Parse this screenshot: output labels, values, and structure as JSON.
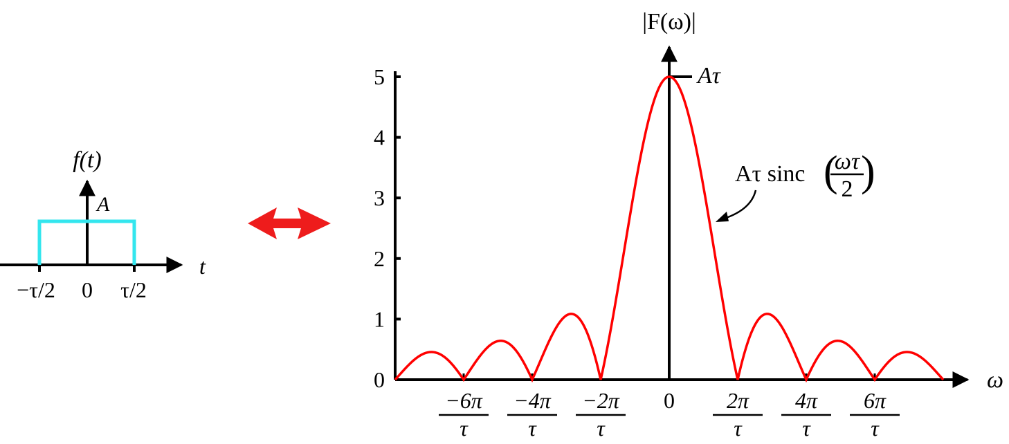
{
  "colors": {
    "pulse": "#33e6ee",
    "spectrum": "#ff0000",
    "double_arrow": "#ee1c1c",
    "axis": "#000000"
  },
  "time_domain": {
    "y_label": "f(t)",
    "amplitude_label": "A",
    "x_label": "t",
    "tick_labels": [
      "−τ/2",
      "0",
      "τ/2"
    ]
  },
  "relation_icon": "double-headed-arrow-icon",
  "chart_data": {
    "type": "line",
    "title": "",
    "ylabel": "|F(ω)|",
    "xlabel": "ω",
    "function": "|Aτ sinc(ωτ/2)|",
    "A_tau": 5,
    "xlim": [
      -8.0,
      8.0
    ],
    "ylim": [
      0,
      5
    ],
    "x_unit": "π/τ",
    "y_ticks": [
      0,
      1,
      2,
      3,
      4,
      5
    ],
    "y_tick_labels": [
      "0",
      "1",
      "2",
      "3",
      "4",
      "5"
    ],
    "x_ticks": [
      {
        "value": -6,
        "num": "−6π",
        "den": "τ"
      },
      {
        "value": -4,
        "num": "−4π",
        "den": "τ"
      },
      {
        "value": -2,
        "num": "−2π",
        "den": "τ"
      },
      {
        "value": 0,
        "num": "0",
        "den": ""
      },
      {
        "value": 2,
        "num": "2π",
        "den": "τ"
      },
      {
        "value": 4,
        "num": "4π",
        "den": "τ"
      },
      {
        "value": 6,
        "num": "6π",
        "den": "τ"
      }
    ],
    "peak_label": "Aτ",
    "curve_annotation": {
      "prefix": "Aτ sinc",
      "num": "ωτ",
      "den": "2"
    },
    "grid": false
  }
}
